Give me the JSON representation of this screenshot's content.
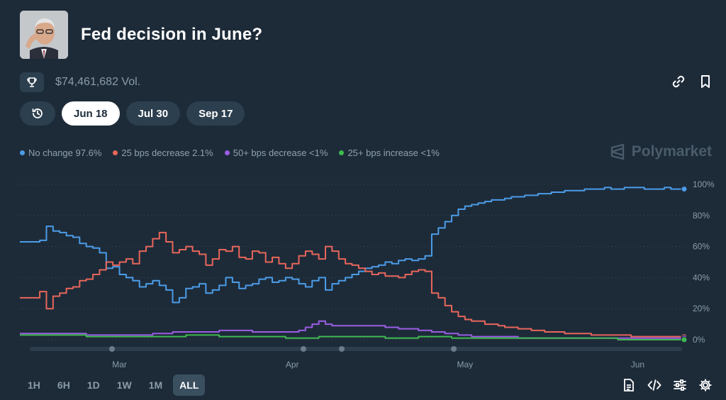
{
  "market": {
    "title": "Fed decision in June?",
    "volume": "$74,461,682 Vol."
  },
  "tabs": [
    {
      "label": "",
      "icon": "history-icon"
    },
    {
      "label": "Jun 18",
      "active": true
    },
    {
      "label": "Jul 30"
    },
    {
      "label": "Sep 17"
    }
  ],
  "legend": [
    {
      "label": "No change 97.6%",
      "color": "#4c9ce8"
    },
    {
      "label": "25 bps decrease 2.1%",
      "color": "#e8665a"
    },
    {
      "label": "50+ bps decrease <1%",
      "color": "#9b5de5"
    },
    {
      "label": "25+ bps increase <1%",
      "color": "#3fb950"
    }
  ],
  "brand": "Polymarket",
  "time_ranges": [
    "1H",
    "6H",
    "1D",
    "1W",
    "1M",
    "ALL"
  ],
  "active_range": "ALL",
  "colors": {
    "background": "#1d2b39",
    "grid": "#3a4a58",
    "axis_text": "#8a9ba8"
  },
  "chart_data": {
    "type": "line",
    "x_tick_labels": [
      "Mar",
      "Apr",
      "May",
      "Jun"
    ],
    "y_tick_labels": [
      "100%",
      "80%",
      "60%",
      "40%",
      "20%",
      "0%"
    ],
    "ylim": [
      0,
      100
    ],
    "xlim": [
      0,
      100
    ],
    "x_ticks": [
      15,
      41,
      67,
      93
    ],
    "series": [
      {
        "name": "No change",
        "color": "#4c9ce8",
        "x": [
          0,
          3,
          4,
          5,
          6,
          7,
          8,
          9,
          10,
          11,
          12,
          13,
          14,
          15,
          16,
          17,
          18,
          19,
          20,
          21,
          22,
          23,
          24,
          25,
          26,
          27,
          28,
          29,
          30,
          31,
          32,
          33,
          34,
          35,
          36,
          37,
          38,
          39,
          40,
          41,
          42,
          43,
          44,
          45,
          46,
          47,
          48,
          49,
          50,
          51,
          52,
          53,
          54,
          55,
          56,
          57,
          58,
          59,
          60,
          61,
          62,
          63,
          64,
          65,
          66,
          67,
          68,
          69,
          70,
          71,
          72,
          73,
          74,
          75,
          76,
          77,
          78,
          79,
          80,
          81,
          82,
          83,
          84,
          85,
          86,
          87,
          88,
          89,
          90,
          91,
          92,
          93,
          94,
          95,
          96,
          97,
          98,
          99,
          100
        ],
        "y": [
          63,
          64,
          73,
          70,
          69,
          67,
          66,
          62,
          60,
          59,
          56,
          46,
          47,
          42,
          40,
          38,
          34,
          36,
          38,
          35,
          32,
          24,
          27,
          33,
          34,
          36,
          30,
          32,
          35,
          40,
          37,
          33,
          35,
          36,
          39,
          40,
          37,
          38,
          40,
          39,
          36,
          34,
          38,
          40,
          32,
          36,
          38,
          40,
          42,
          44,
          46,
          47,
          48,
          50,
          49,
          51,
          52,
          51,
          52,
          54,
          68,
          72,
          76,
          80,
          84,
          86,
          87,
          88,
          89,
          90,
          90,
          91,
          92,
          92,
          93,
          93,
          94,
          94,
          95,
          95,
          96,
          96,
          96,
          97,
          97,
          97,
          98,
          97,
          97,
          98,
          98,
          98,
          97,
          97,
          97,
          98,
          97,
          97,
          97
        ]
      },
      {
        "name": "25 bps decrease",
        "color": "#e8665a",
        "x": [
          0,
          3,
          4,
          5,
          6,
          7,
          8,
          9,
          10,
          11,
          12,
          13,
          14,
          15,
          16,
          17,
          18,
          19,
          20,
          21,
          22,
          23,
          24,
          25,
          26,
          27,
          28,
          29,
          30,
          31,
          32,
          33,
          34,
          35,
          36,
          37,
          38,
          39,
          40,
          41,
          42,
          43,
          44,
          45,
          46,
          47,
          48,
          49,
          50,
          51,
          52,
          53,
          54,
          55,
          56,
          57,
          58,
          59,
          60,
          61,
          62,
          63,
          64,
          65,
          66,
          67,
          68,
          69,
          70,
          71,
          72,
          73,
          74,
          75,
          76,
          77,
          78,
          79,
          80,
          81,
          82,
          83,
          84,
          85,
          86,
          87,
          88,
          89,
          90,
          91,
          92,
          93,
          94,
          95,
          96,
          97,
          98,
          99,
          100
        ],
        "y": [
          27,
          31,
          20,
          28,
          30,
          33,
          34,
          38,
          39,
          42,
          45,
          50,
          48,
          50,
          52,
          49,
          57,
          60,
          65,
          69,
          63,
          56,
          58,
          60,
          57,
          55,
          48,
          52,
          58,
          57,
          60,
          53,
          52,
          57,
          56,
          50,
          53,
          49,
          46,
          49,
          54,
          57,
          55,
          52,
          60,
          57,
          52,
          49,
          48,
          46,
          44,
          42,
          43,
          41,
          41,
          40,
          42,
          44,
          45,
          44,
          30,
          27,
          22,
          18,
          15,
          13,
          12,
          12,
          10,
          10,
          9,
          8,
          8,
          7,
          7,
          6,
          6,
          5,
          5,
          5,
          4,
          4,
          4,
          4,
          3,
          3,
          3,
          3,
          3,
          3,
          2,
          2,
          2,
          2,
          2,
          2,
          2,
          2,
          2
        ]
      },
      {
        "name": "50+ bps decrease",
        "color": "#9b5de5",
        "x": [
          0,
          5,
          10,
          15,
          20,
          23,
          25,
          27,
          30,
          32,
          35,
          38,
          40,
          41,
          42,
          43,
          44,
          45,
          46,
          47,
          48,
          50,
          52,
          55,
          57,
          60,
          62,
          64,
          66,
          68,
          70,
          75,
          80,
          85,
          90,
          95,
          100
        ],
        "y": [
          4,
          4,
          3,
          3,
          4,
          5,
          5,
          5,
          6,
          6,
          5,
          5,
          5,
          5,
          6,
          8,
          10,
          12,
          10,
          9,
          9,
          9,
          9,
          8,
          7,
          6,
          5,
          4,
          3,
          2,
          2,
          1,
          1,
          1,
          1,
          1,
          1
        ]
      },
      {
        "name": "25+ bps increase",
        "color": "#3fb950",
        "x": [
          0,
          5,
          10,
          15,
          20,
          25,
          30,
          35,
          40,
          45,
          50,
          55,
          60,
          65,
          70,
          75,
          80,
          85,
          90,
          95,
          100
        ],
        "y": [
          3,
          3,
          2,
          2,
          2,
          3,
          2,
          2,
          1,
          2,
          2,
          1,
          2,
          1,
          1,
          1,
          1,
          1,
          0,
          0,
          0
        ]
      }
    ]
  }
}
